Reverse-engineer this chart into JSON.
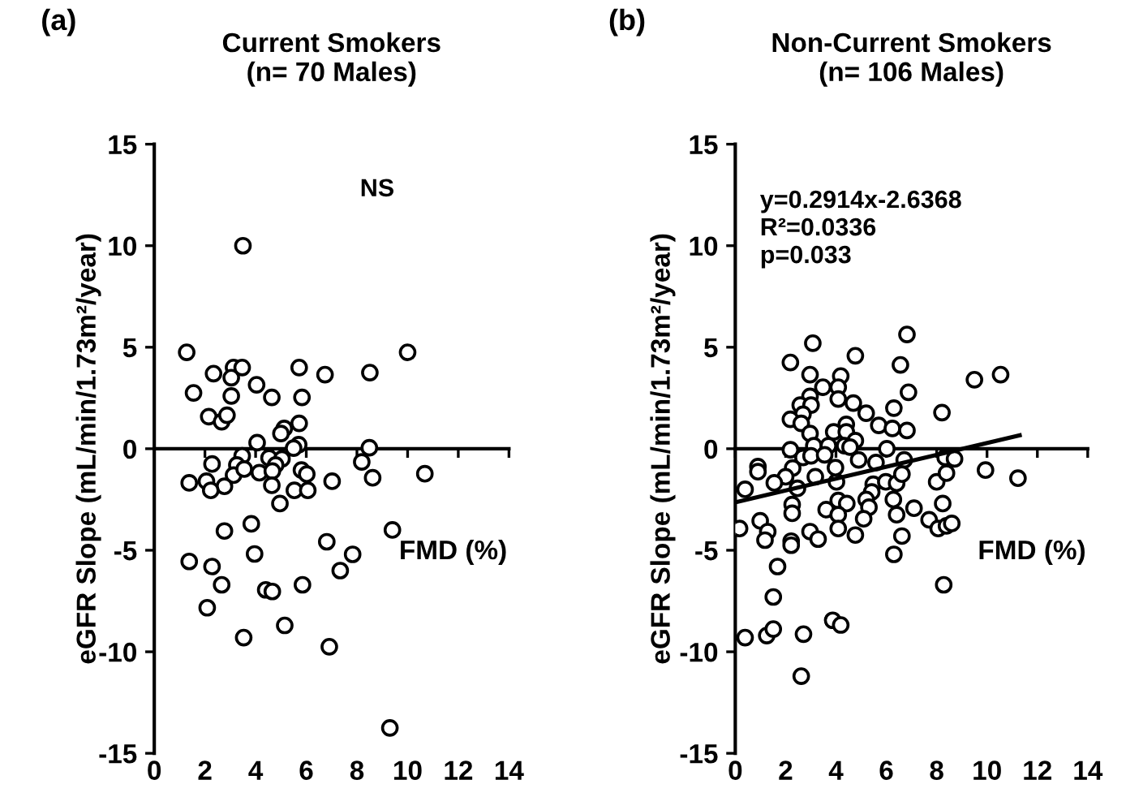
{
  "chart_data": [
    {
      "type": "scatter",
      "title": "Current Smokers\n(n= 70 Males)",
      "xlabel": "FMD (%)",
      "ylabel": "eGFR Slope (mL/min/1.73m²/year)",
      "annotations": [
        "(a)",
        "NS"
      ],
      "xlim": [
        0,
        14
      ],
      "xticks": [
        0,
        2,
        4,
        6,
        8,
        10,
        12,
        14
      ],
      "ylim": [
        -15,
        15
      ],
      "yticks": [
        -15,
        -10,
        -5,
        0,
        5,
        10,
        15
      ],
      "marker": "circle",
      "series": [
        {
          "color": "#000000",
          "x": [
            1.28,
            2.34,
            1.55,
            3.13,
            3.47,
            3.04,
            3.04,
            4.04,
            4.64,
            2.15,
            2.66,
            2.87,
            5.72,
            6.74,
            8.51,
            10.0,
            5.83,
            5.13,
            5.0,
            5.72,
            4.06,
            5.7,
            5.5,
            8.49,
            8.19,
            2.28,
            3.47,
            4.53,
            5.04,
            4.79,
            3.26,
            3.13,
            3.55,
            4.15,
            4.66,
            5.81,
            6.02,
            1.38,
            2.06,
            2.77,
            4.64,
            7.02,
            8.62,
            10.68,
            2.23,
            5.53,
            6.06,
            4.96,
            2.77,
            3.83,
            9.4,
            6.81,
            1.38,
            2.28,
            3.96,
            7.83,
            7.34,
            2.66,
            4.4,
            4.66,
            5.85,
            2.09,
            5.15,
            3.53,
            6.91,
            9.3,
            3.5
          ],
          "values": [
            4.75,
            3.7,
            2.75,
            4.0,
            4.0,
            3.5,
            2.6,
            3.15,
            2.53,
            1.58,
            1.33,
            1.65,
            4.0,
            3.65,
            3.75,
            4.75,
            2.53,
            1.0,
            0.75,
            1.25,
            0.3,
            0.2,
            0.03,
            0.05,
            -0.65,
            -0.75,
            -0.35,
            -0.45,
            -0.5,
            -0.8,
            -0.8,
            -1.3,
            -1.0,
            -1.18,
            -1.1,
            -1.05,
            -1.25,
            -1.68,
            -1.6,
            -1.85,
            -1.8,
            -1.6,
            -1.43,
            -1.23,
            -2.05,
            -2.05,
            -2.05,
            -2.7,
            -4.05,
            -3.7,
            -4.0,
            -4.58,
            -5.55,
            -5.8,
            -5.18,
            -5.2,
            -6.0,
            -6.7,
            -6.95,
            -7.03,
            -6.7,
            -7.83,
            -8.7,
            -9.3,
            -9.75,
            -13.75,
            10.0
          ]
        }
      ]
    },
    {
      "type": "scatter",
      "title": "Non-Current Smokers\n(n= 106 Males)",
      "xlabel": "FMD (%)",
      "ylabel": "eGFR Slope (mL/min/1.73m²/year)",
      "annotations": [
        "(b)",
        "y=0.2914x-2.6368\nR²=0.0336\np=0.033"
      ],
      "xlim": [
        0,
        14
      ],
      "xticks": [
        0,
        2,
        4,
        6,
        8,
        10,
        12,
        14
      ],
      "ylim": [
        -15,
        15
      ],
      "yticks": [
        -15,
        -10,
        -5,
        0,
        5,
        10,
        15
      ],
      "marker": "circle",
      "series": [
        {
          "color": "#000000",
          "x": [
            2.19,
            3.08,
            4.77,
            6.82,
            2.97,
            4.19,
            3.48,
            4.09,
            6.56,
            6.88,
            2.97,
            4.09,
            4.69,
            9.5,
            10.54,
            2.58,
            3.01,
            2.69,
            5.2,
            6.3,
            8.21,
            2.19,
            2.62,
            4.41,
            5.7,
            6.24,
            6.82,
            2.97,
            3.91,
            4.41,
            4.77,
            3.12,
            3.7,
            4.34,
            4.56,
            2.19,
            6.02,
            2.69,
            3.01,
            3.55,
            4.9,
            5.59,
            6.71,
            8.34,
            8.71,
            0.9,
            0.9,
            0.39,
            2.28,
            2.0,
            1.55,
            2.47,
            3.18,
            4.02,
            3.98,
            5.48,
            5.42,
            5.98,
            6.41,
            6.62,
            8.0,
            8.39,
            9.94,
            11.23,
            2.26,
            2.26,
            3.61,
            4.09,
            4.43,
            4.09,
            5.2,
            5.31,
            6.28,
            6.41,
            7.1,
            8.24,
            7.7,
            8.06,
            8.39,
            8.6,
            0.99,
            0.17,
            1.29,
            1.18,
            2.22,
            2.22,
            2.97,
            3.29,
            4.09,
            4.77,
            5.1,
            6.62,
            6.3,
            1.68,
            1.51,
            8.28,
            0.39,
            1.25,
            1.51,
            2.71,
            3.87,
            4.19,
            2.62
          ],
          "values": [
            4.25,
            5.2,
            4.58,
            5.63,
            3.65,
            3.58,
            3.03,
            3.03,
            4.13,
            2.78,
            2.58,
            2.45,
            2.25,
            3.4,
            3.65,
            2.15,
            2.15,
            1.7,
            1.75,
            2.0,
            1.78,
            1.45,
            1.25,
            1.2,
            1.15,
            1.0,
            0.9,
            0.75,
            0.83,
            0.83,
            0.4,
            0.15,
            0.15,
            0.15,
            0.08,
            -0.05,
            0.0,
            -0.43,
            -0.35,
            -0.3,
            -0.55,
            -0.68,
            -0.55,
            -0.43,
            -0.5,
            -0.88,
            -1.13,
            -2.0,
            -0.95,
            -1.38,
            -1.68,
            -1.95,
            -1.38,
            -1.63,
            -0.93,
            -1.75,
            -2.13,
            -1.63,
            -1.7,
            -1.25,
            -1.63,
            -1.2,
            -1.05,
            -1.45,
            -2.75,
            -3.18,
            -3.0,
            -2.55,
            -2.7,
            -3.25,
            -2.5,
            -2.88,
            -2.5,
            -3.25,
            -2.93,
            -2.7,
            -3.5,
            -3.93,
            -3.8,
            -3.68,
            -3.55,
            -3.93,
            -4.08,
            -4.5,
            -4.55,
            -4.75,
            -4.08,
            -4.45,
            -3.93,
            -4.25,
            -3.45,
            -4.3,
            -5.2,
            -5.8,
            -7.3,
            -6.7,
            -9.3,
            -9.2,
            -8.88,
            -9.13,
            -8.45,
            -8.68,
            -11.2
          ]
        },
        {
          "type": "line",
          "color": "#000000",
          "marker": "none",
          "line_style": "solid",
          "x": [
            0.1,
            11.3
          ],
          "values": [
            -2.61,
            0.66
          ]
        }
      ]
    }
  ]
}
